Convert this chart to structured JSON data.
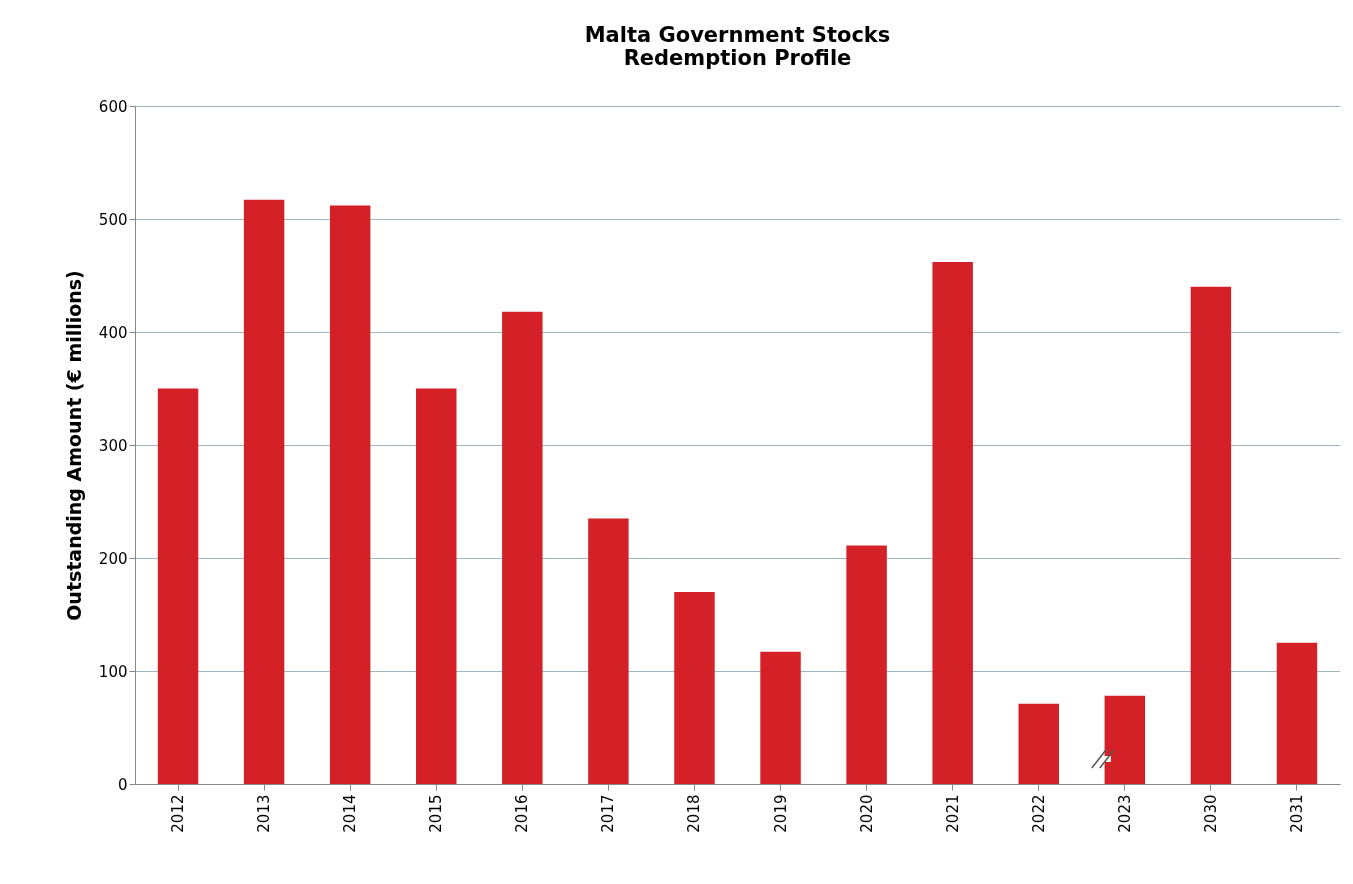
{
  "chart_data": {
    "type": "bar",
    "title": "Malta Government Stocks\nRedemption Profile",
    "ylabel": "Outstanding Amount  (€ millions)",
    "categories": [
      "2012",
      "2013",
      "2014",
      "2015",
      "2016",
      "2017",
      "2018",
      "2019",
      "2020",
      "2021",
      "2022",
      "2023",
      "2030",
      "2031"
    ],
    "values": [
      350,
      517,
      512,
      350,
      418,
      235,
      170,
      117,
      211,
      462,
      71,
      78,
      440,
      125
    ],
    "color": "#d42027",
    "ylim": [
      0,
      600
    ],
    "yticks": [
      0,
      100,
      200,
      300,
      400,
      500,
      600
    ],
    "grid": "y"
  }
}
